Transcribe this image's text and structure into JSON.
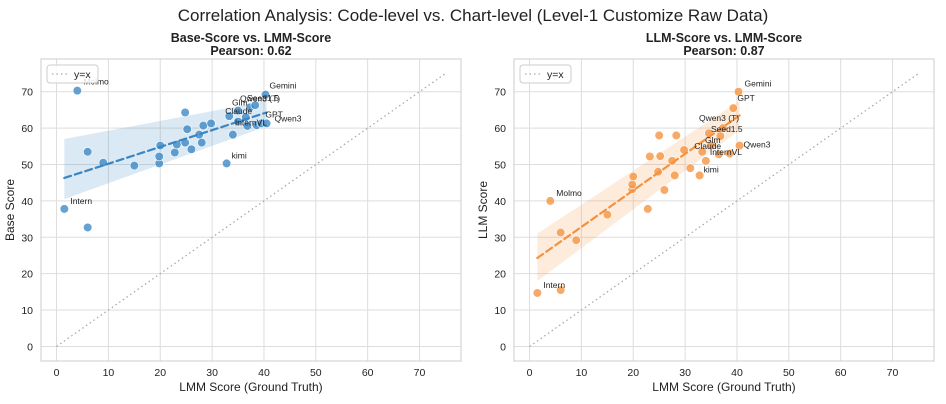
{
  "figure": {
    "title": "Correlation Analysis: Code-level vs. Chart-level (Level-1 Customize Raw Data)"
  },
  "chart_data": [
    {
      "type": "scatter",
      "title": "Base-Score vs. LMM-Score",
      "subtitle": "Pearson: 0.62",
      "xlabel": "LMM Score (Ground Truth)",
      "ylabel": "Base Score",
      "xlim": [
        -3,
        78
      ],
      "ylim": [
        -4,
        79
      ],
      "xticks": [
        0,
        10,
        20,
        30,
        40,
        50,
        60,
        70
      ],
      "yticks": [
        0,
        10,
        20,
        30,
        40,
        50,
        60,
        70
      ],
      "grid": true,
      "color": "#3a86c4",
      "legend": {
        "position": "top-left",
        "entries": [
          "y=x"
        ]
      },
      "reference_line": {
        "label": "y=x",
        "from": 0,
        "to": 75
      },
      "regression": {
        "x0": 1.5,
        "y0": 46.3,
        "x1": 40.5,
        "y1": 64.3,
        "ci_low_start": 40.5,
        "ci_high_start": 57.0,
        "ci_low_end": 60.5,
        "ci_high_end": 67.5
      },
      "points": [
        {
          "x": 4.0,
          "y": 70.3,
          "label": "Molmo"
        },
        {
          "x": 1.5,
          "y": 37.8,
          "label": "Intern"
        },
        {
          "x": 6.0,
          "y": 32.7,
          "label": ""
        },
        {
          "x": 6.0,
          "y": 53.5,
          "label": ""
        },
        {
          "x": 9.0,
          "y": 50.5,
          "label": ""
        },
        {
          "x": 15.0,
          "y": 49.7,
          "label": ""
        },
        {
          "x": 19.8,
          "y": 50.3,
          "label": ""
        },
        {
          "x": 19.8,
          "y": 52.2,
          "label": ""
        },
        {
          "x": 20.0,
          "y": 55.2,
          "label": ""
        },
        {
          "x": 22.8,
          "y": 53.3,
          "label": ""
        },
        {
          "x": 23.2,
          "y": 55.5,
          "label": ""
        },
        {
          "x": 24.8,
          "y": 56.0,
          "label": ""
        },
        {
          "x": 25.2,
          "y": 59.7,
          "label": ""
        },
        {
          "x": 26.0,
          "y": 54.2,
          "label": ""
        },
        {
          "x": 24.8,
          "y": 64.3,
          "label": ""
        },
        {
          "x": 27.5,
          "y": 58.2,
          "label": ""
        },
        {
          "x": 28.0,
          "y": 56.0,
          "label": ""
        },
        {
          "x": 28.3,
          "y": 60.7,
          "label": ""
        },
        {
          "x": 29.8,
          "y": 61.3,
          "label": ""
        },
        {
          "x": 32.8,
          "y": 50.3,
          "label": "kimi"
        },
        {
          "x": 33.3,
          "y": 63.3,
          "label": "Claude"
        },
        {
          "x": 34.0,
          "y": 58.2,
          "label": "InternVL"
        },
        {
          "x": 35.0,
          "y": 64.8,
          "label": "Glm"
        },
        {
          "x": 35.0,
          "y": 61.8,
          "label": ""
        },
        {
          "x": 36.5,
          "y": 63.0,
          "label": ""
        },
        {
          "x": 36.8,
          "y": 60.6,
          "label": ""
        },
        {
          "x": 37.3,
          "y": 65.7,
          "label": "Qwen3 (T)"
        },
        {
          "x": 38.3,
          "y": 66.3,
          "label": "Seed1.5"
        },
        {
          "x": 38.6,
          "y": 60.8,
          "label": ""
        },
        {
          "x": 39.5,
          "y": 61.3,
          "label": "GPT"
        },
        {
          "x": 40.5,
          "y": 61.3,
          "label": "Qwen3"
        },
        {
          "x": 40.3,
          "y": 69.2,
          "label": "Gemini"
        }
      ]
    },
    {
      "type": "scatter",
      "title": "LLM-Score vs. LMM-Score",
      "subtitle": "Pearson: 0.87",
      "xlabel": "LMM Score (Ground Truth)",
      "ylabel": "LLM Score",
      "xlim": [
        -3,
        78
      ],
      "ylim": [
        -4,
        79
      ],
      "xticks": [
        0,
        10,
        20,
        30,
        40,
        50,
        60,
        70
      ],
      "yticks": [
        0,
        10,
        20,
        30,
        40,
        50,
        60,
        70
      ],
      "grid": true,
      "color": "#f5923e",
      "legend": {
        "position": "top-left",
        "entries": [
          "y=x"
        ]
      },
      "reference_line": {
        "label": "y=x",
        "from": 0,
        "to": 75
      },
      "regression": {
        "x0": 1.5,
        "y0": 24.3,
        "x1": 40.5,
        "y1": 63.5,
        "ci_low_start": 18.0,
        "ci_high_start": 31.0,
        "ci_low_end": 59.5,
        "ci_high_end": 67.5
      },
      "points": [
        {
          "x": 1.5,
          "y": 14.7,
          "label": "Intern"
        },
        {
          "x": 6.0,
          "y": 15.5,
          "label": ""
        },
        {
          "x": 4.0,
          "y": 40.0,
          "label": "Molmo"
        },
        {
          "x": 6.0,
          "y": 31.3,
          "label": ""
        },
        {
          "x": 9.0,
          "y": 29.2,
          "label": ""
        },
        {
          "x": 15.0,
          "y": 36.2,
          "label": ""
        },
        {
          "x": 19.8,
          "y": 43.2,
          "label": ""
        },
        {
          "x": 19.8,
          "y": 44.5,
          "label": ""
        },
        {
          "x": 20.0,
          "y": 46.7,
          "label": ""
        },
        {
          "x": 22.8,
          "y": 37.8,
          "label": ""
        },
        {
          "x": 23.2,
          "y": 52.2,
          "label": ""
        },
        {
          "x": 24.8,
          "y": 48.0,
          "label": ""
        },
        {
          "x": 25.0,
          "y": 58.0,
          "label": ""
        },
        {
          "x": 25.2,
          "y": 52.3,
          "label": ""
        },
        {
          "x": 26.0,
          "y": 43.0,
          "label": ""
        },
        {
          "x": 27.5,
          "y": 51.0,
          "label": ""
        },
        {
          "x": 28.0,
          "y": 47.0,
          "label": ""
        },
        {
          "x": 28.3,
          "y": 58.0,
          "label": ""
        },
        {
          "x": 29.8,
          "y": 54.0,
          "label": ""
        },
        {
          "x": 31.0,
          "y": 49.0,
          "label": ""
        },
        {
          "x": 32.8,
          "y": 47.0,
          "label": "kimi"
        },
        {
          "x": 33.3,
          "y": 53.5,
          "label": "Claude"
        },
        {
          "x": 34.0,
          "y": 51.0,
          "label": "InternVL"
        },
        {
          "x": 34.6,
          "y": 58.6,
          "label": "Seed1.5"
        },
        {
          "x": 35.0,
          "y": 55.3,
          "label": "Glm"
        },
        {
          "x": 36.5,
          "y": 52.8,
          "label": ""
        },
        {
          "x": 36.8,
          "y": 57.8,
          "label": ""
        },
        {
          "x": 37.3,
          "y": 60.0,
          "label": "Qwen3 (T)"
        },
        {
          "x": 38.6,
          "y": 53.0,
          "label": ""
        },
        {
          "x": 39.3,
          "y": 65.5,
          "label": "GPT"
        },
        {
          "x": 40.5,
          "y": 55.2,
          "label": "Qwen3"
        },
        {
          "x": 40.3,
          "y": 70.0,
          "label": "Gemini"
        }
      ]
    }
  ]
}
